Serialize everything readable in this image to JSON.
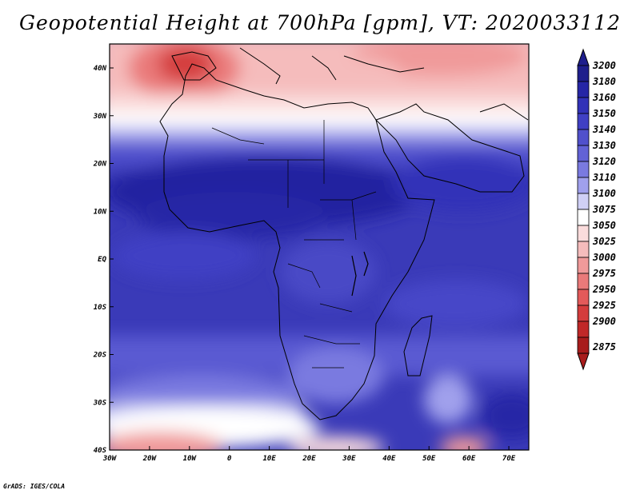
{
  "title": "Geopotential Height at 700hPa [gpm], VT: 2020033112",
  "credit": "GrADS: IGES/COLA",
  "map": {
    "lon_ticks": [
      "30W",
      "20W",
      "10W",
      "0",
      "10E",
      "20E",
      "30E",
      "40E",
      "50E",
      "60E",
      "70E"
    ],
    "lat_ticks": [
      "40N",
      "30N",
      "20N",
      "10N",
      "EQ",
      "10S",
      "20S",
      "30S",
      "40S"
    ],
    "lon_range": [
      -30,
      75
    ],
    "lat_range": [
      -40,
      45
    ]
  },
  "colorbar": {
    "levels": [
      "3200",
      "3180",
      "3160",
      "3150",
      "3140",
      "3130",
      "3120",
      "3110",
      "3100",
      "3075",
      "3050",
      "3025",
      "3000",
      "2975",
      "2950",
      "2925",
      "2900",
      "2875"
    ],
    "colors": [
      "#1e1e8c",
      "#2626a6",
      "#3232b8",
      "#4040c4",
      "#5050cc",
      "#6262d6",
      "#7a7ae0",
      "#a0a0ec",
      "#d0d0f6",
      "#ffffff",
      "#fadcdc",
      "#f5bcbc",
      "#f09a9a",
      "#ea7a7a",
      "#e35a5a",
      "#d43c3c",
      "#c02828",
      "#a81c1c"
    ]
  }
}
